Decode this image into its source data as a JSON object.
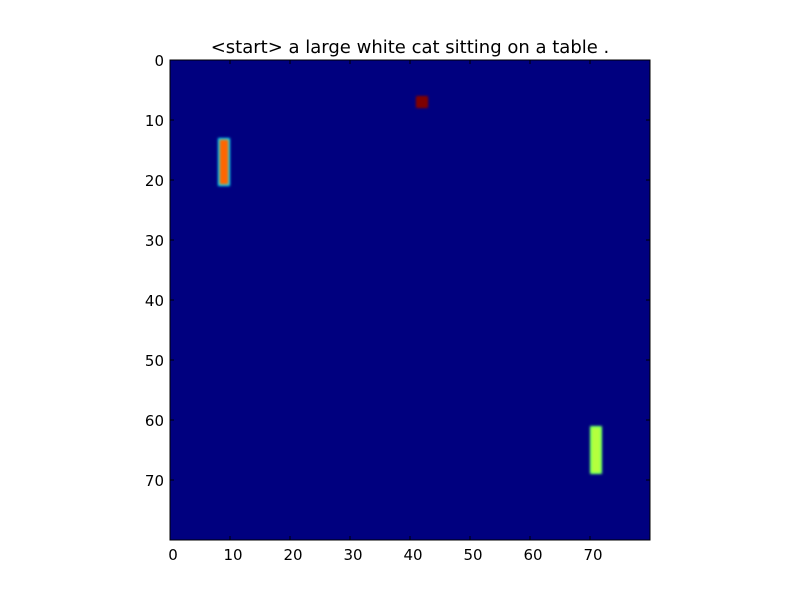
{
  "chart_data": {
    "type": "heatmap",
    "title": "<start> a large white cat sitting on a table .",
    "xlabel": "",
    "ylabel": "",
    "grid": false,
    "colormap": "jet",
    "background_color": "#00007f",
    "xlim": [
      0,
      80
    ],
    "ylim": [
      80,
      0
    ],
    "y_inverted": true,
    "x_ticks": [
      0,
      10,
      20,
      30,
      40,
      50,
      60,
      70
    ],
    "y_ticks": [
      0,
      10,
      20,
      30,
      40,
      50,
      60,
      70
    ],
    "x_tick_labels": [
      "0",
      "10",
      "20",
      "30",
      "40",
      "50",
      "60",
      "70"
    ],
    "y_tick_labels": [
      "0",
      "10",
      "20",
      "30",
      "40",
      "50",
      "60",
      "70"
    ],
    "regions": [
      {
        "x_range": [
          8,
          10
        ],
        "y_range": [
          13,
          21
        ],
        "intensity": 0.8,
        "fill_color": "#ff6600",
        "edge_color": "#00e5ff"
      },
      {
        "x_range": [
          41,
          43
        ],
        "y_range": [
          6,
          8
        ],
        "intensity": 1.0,
        "fill_color": "#7f0000",
        "edge_color": "#7f0000"
      },
      {
        "x_range": [
          70,
          72
        ],
        "y_range": [
          61,
          69
        ],
        "intensity": 0.6,
        "fill_color": "#b4ff3c",
        "edge_color": "#66ff66"
      }
    ]
  }
}
